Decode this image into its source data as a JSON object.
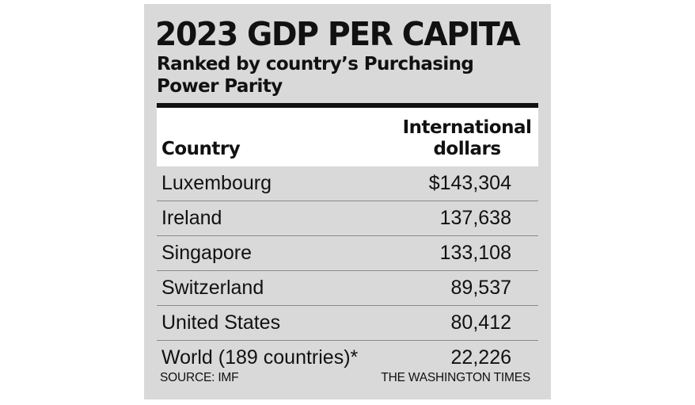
{
  "chart_data": {
    "type": "table",
    "title": "2023 GDP PER CAPITA",
    "subtitle": "Ranked by country’s Purchasing Power Parity",
    "columns": [
      "Country",
      "International dollars"
    ],
    "rows": [
      {
        "country": "Luxembourg",
        "value": 143304,
        "display": "$143,304"
      },
      {
        "country": "Ireland",
        "value": 137638,
        "display": "137,638"
      },
      {
        "country": "Singapore",
        "value": 133108,
        "display": "133,108"
      },
      {
        "country": "Switzerland",
        "value": 89537,
        "display": "89,537"
      },
      {
        "country": "United States",
        "value": 80412,
        "display": "80,412"
      },
      {
        "country": "World (189 countries)*",
        "value": 22226,
        "display": "22,226"
      }
    ],
    "source": "SOURCE: IMF",
    "credit": "THE WASHINGTON TIMES"
  },
  "colors": {
    "panel_background": "#d9d9d9",
    "header_background": "#ffffff",
    "rule": "#111111",
    "row_divider": "#8a8a8a",
    "text": "#111111"
  }
}
